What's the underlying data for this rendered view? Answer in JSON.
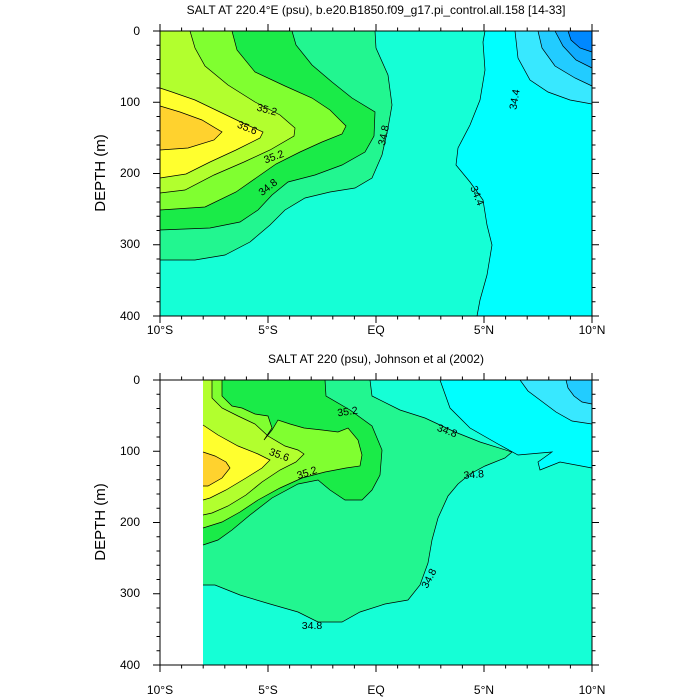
{
  "chart_data": [
    {
      "type": "heatmap",
      "title": "SALT AT 220.4°E (psu), b.e20.B1850.f09_g17.pi_control.all.158 [14-33]",
      "xlabel": "",
      "ylabel": "DEPTH (m)",
      "x_ticklabels": [
        "10°S",
        "5°S",
        "EQ",
        "5°N",
        "10°N"
      ],
      "x_range_deg": [
        -10,
        10
      ],
      "y_ticklabels": [
        "0",
        "100",
        "200",
        "300",
        "400"
      ],
      "ylim_m": [
        0,
        400
      ],
      "y_inverted": true,
      "contour_labels": [
        {
          "text": "35.6",
          "lat": -5.5,
          "depth": 137
        },
        {
          "text": "35.2",
          "lat": -3.4,
          "depth": 112
        },
        {
          "text": "35.2",
          "lat": -5.0,
          "depth": 178
        },
        {
          "text": "34.8",
          "lat": -5.2,
          "depth": 220
        },
        {
          "text": "34.8",
          "lat": 0.4,
          "depth": 146
        },
        {
          "text": "34.4",
          "lat": 5.5,
          "depth": 98
        },
        {
          "text": "34.4",
          "lat": 4.2,
          "depth": 232
        }
      ],
      "color_regions": [
        {
          "name": "35.8+",
          "color": "#ffd22e"
        },
        {
          "name": "35.6-35.8",
          "color": "#ffff2e"
        },
        {
          "name": "35.4-35.6",
          "color": "#b2ff2e"
        },
        {
          "name": "35.2-35.4",
          "color": "#80ff30"
        },
        {
          "name": "35.0-35.2",
          "color": "#1aeb48"
        },
        {
          "name": "34.8-35.0",
          "color": "#22f690"
        },
        {
          "name": "34.6-34.8",
          "color": "#15ffd6"
        },
        {
          "name": "34.4-34.6",
          "color": "#00ffff"
        },
        {
          "name": "34.2-34.4",
          "color": "#38e8ff"
        },
        {
          "name": "34.0-34.2",
          "color": "#22ccff"
        },
        {
          "name": "33.8-34.0",
          "color": "#10acff"
        },
        {
          "name": "<33.8",
          "color": "#0088ff"
        }
      ]
    },
    {
      "type": "heatmap",
      "title": "SALT AT 220 (psu), Johnson et al (2002)",
      "xlabel": "",
      "ylabel": "DEPTH (m)",
      "x_ticklabels": [
        "10°S",
        "5°S",
        "EQ",
        "5°N",
        "10°N"
      ],
      "x_range_deg": [
        -10,
        10
      ],
      "data_lat_range": [
        -8,
        10
      ],
      "y_ticklabels": [
        "0",
        "100",
        "200",
        "300",
        "400"
      ],
      "ylim_m": [
        0,
        400
      ],
      "y_inverted": true,
      "contour_labels": [
        {
          "text": "35.2",
          "lat": -1.3,
          "depth": 47
        },
        {
          "text": "34.8",
          "lat": 3.2,
          "depth": 75
        },
        {
          "text": "35.6",
          "lat": -5.0,
          "depth": 108
        },
        {
          "text": "35.2",
          "lat": -3.1,
          "depth": 138
        },
        {
          "text": "34.8",
          "lat": 4.5,
          "depth": 135
        },
        {
          "text": "34.8",
          "lat": 2.3,
          "depth": 282
        },
        {
          "text": "34.8",
          "lat": -3.0,
          "depth": 345
        }
      ],
      "color_regions": [
        {
          "name": "35.8+",
          "color": "#ffd22e"
        },
        {
          "name": "35.6-35.8",
          "color": "#ffff2e"
        },
        {
          "name": "35.4-35.6",
          "color": "#b2ff2e"
        },
        {
          "name": "35.2-35.4",
          "color": "#80ff30"
        },
        {
          "name": "35.0-35.2",
          "color": "#1aeb48"
        },
        {
          "name": "34.8-35.0",
          "color": "#22f690"
        },
        {
          "name": "34.6-34.8",
          "color": "#15ffd6"
        },
        {
          "name": "34.4-34.6",
          "color": "#00ffff"
        },
        {
          "name": "34.2-34.4",
          "color": "#38e8ff"
        },
        {
          "name": "<34.2",
          "color": "#22ccff"
        }
      ]
    }
  ]
}
